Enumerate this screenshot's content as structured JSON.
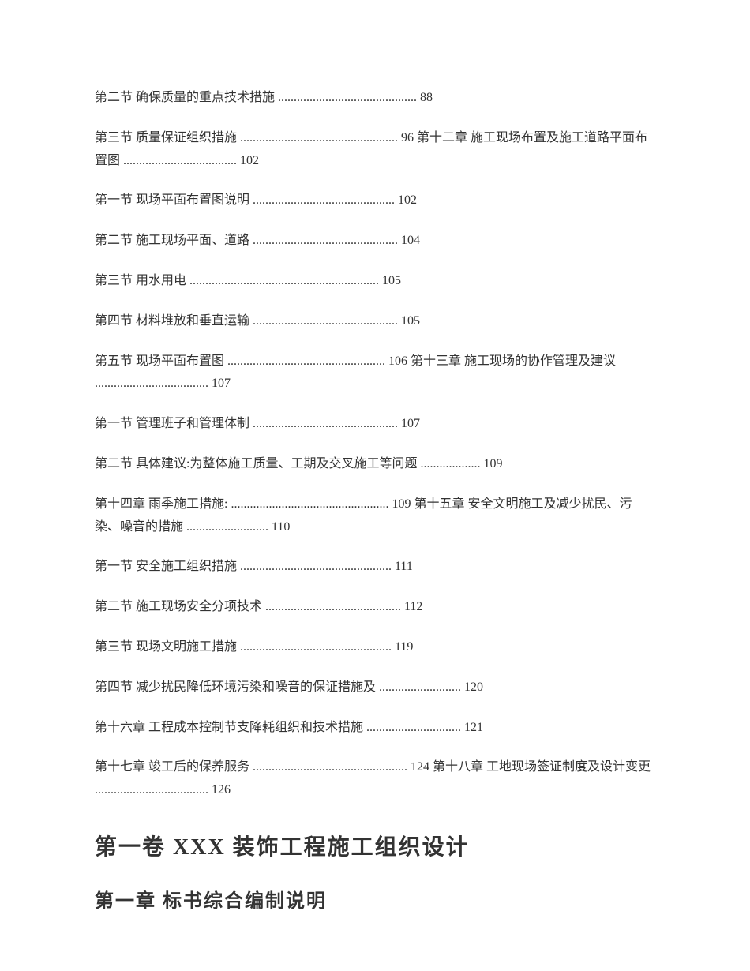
{
  "toc": {
    "entries": [
      "第二节 确保质量的重点技术措施 ............................................ 88",
      "第三节 质量保证组织措施 .................................................. 96 第十二章 施工现场布置及施工道路平面布置图 .................................... 102",
      "第一节 现场平面布置图说明 ............................................. 102",
      "第二节 施工现场平面、道路 .............................................. 104",
      "第三节 用水用电 ............................................................ 105",
      "第四节 材料堆放和垂直运输 .............................................. 105",
      "第五节 现场平面布置图 .................................................. 106 第十三章 施工现场的协作管理及建议 .................................... 107",
      "第一节 管理班子和管理体制 .............................................. 107",
      "第二节 具体建议:为整体施工质量、工期及交叉施工等问题 ................... 109",
      "第十四章 雨季施工措施: .................................................. 109 第十五章 安全文明施工及减少扰民、污染、噪音的措施 .......................... 110",
      "第一节 安全施工组织措施 ................................................ 111",
      "第二节 施工现场安全分项技术 ........................................... 112",
      "第三节 现场文明施工措施 ................................................ 119",
      "第四节 减少扰民降低环境污染和噪音的保证措施及 .......................... 120",
      "第十六章 工程成本控制节支降耗组织和技术措施 .............................. 121",
      "第十七章 竣工后的保养服务 ................................................. 124 第十八章 工地现场签证制度及设计变更 .................................... 126"
    ]
  },
  "headings": {
    "h1": "第一卷 XXX 装饰工程施工组织设计",
    "h2": "第一章 标书综合编制说明"
  }
}
